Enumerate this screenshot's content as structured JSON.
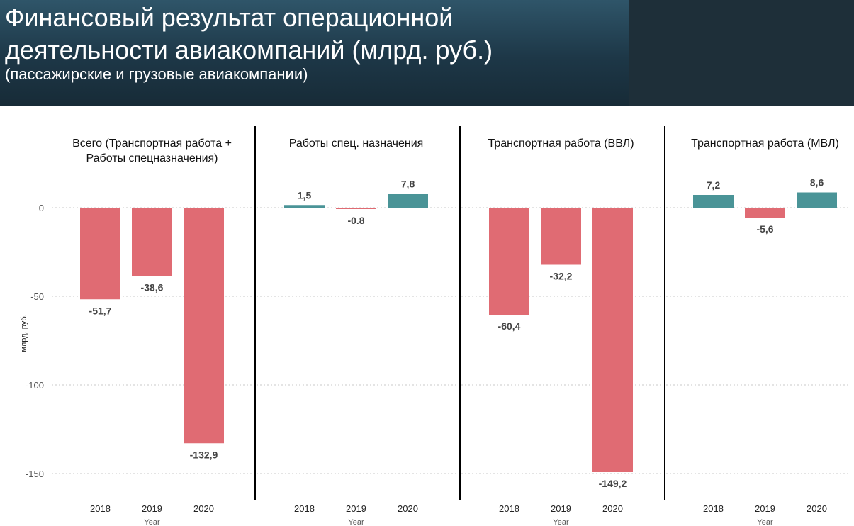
{
  "header": {
    "title_line1": "Финансовый результат операционной",
    "title_line2": "деятельности авиакомпаний (млрд. руб.)",
    "subtitle": "(пассажирские и грузовые авиакомпании)"
  },
  "colors": {
    "negative": "#e06b73",
    "positive": "#4a9497",
    "grid": "#c8c8c8",
    "divider": "#000000"
  },
  "chart_data": {
    "type": "bar",
    "ylabel": "млрд. руб.",
    "xlabel": "Year",
    "ylim": [
      -150,
      8.6
    ],
    "yticks": [
      0,
      -50,
      -100,
      -150
    ],
    "ytick_labels": [
      "0",
      "-50",
      "-100",
      "-150"
    ],
    "grid": true,
    "categories": [
      "2018",
      "2019",
      "2020"
    ],
    "panels": [
      {
        "title_lines": [
          "Всего (Транспортная работа +",
          "Работы спецназначения)"
        ],
        "values": [
          -51.7,
          -38.6,
          -132.9
        ],
        "labels": [
          "-51,7",
          "-38,6",
          "-132,9"
        ]
      },
      {
        "title_lines": [
          "Работы спец. назначения"
        ],
        "values": [
          1.5,
          -0.8,
          7.8
        ],
        "labels": [
          "1,5",
          "-0.8",
          "7,8"
        ]
      },
      {
        "title_lines": [
          "Транспортная работа (ВВЛ)"
        ],
        "values": [
          -60.4,
          -32.2,
          -149.2
        ],
        "labels": [
          "-60,4",
          "-32,2",
          "-149,2"
        ]
      },
      {
        "title_lines": [
          "Транспортная работа (МВЛ)"
        ],
        "values": [
          7.2,
          -5.6,
          8.6
        ],
        "labels": [
          "7,2",
          "-5,6",
          "8,6"
        ]
      }
    ]
  }
}
